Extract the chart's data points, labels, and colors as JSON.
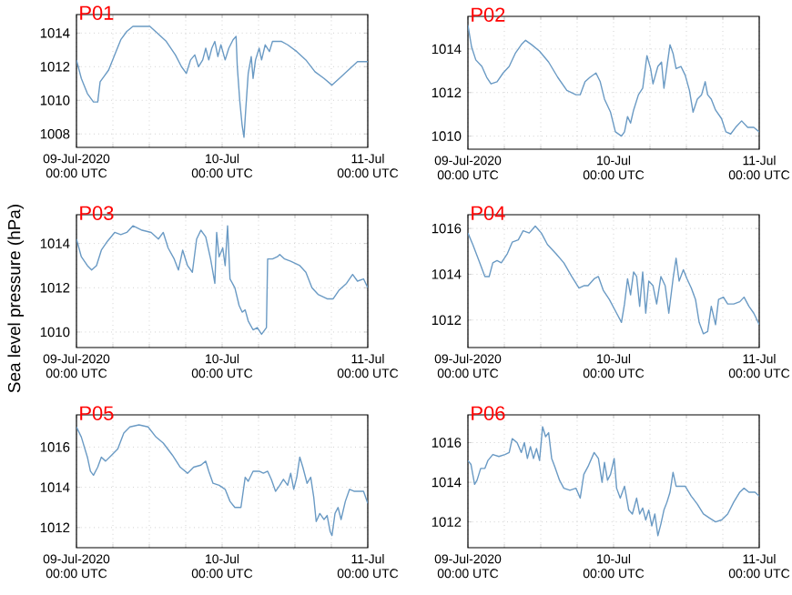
{
  "chart_data": [
    {
      "type": "line",
      "title": "P01",
      "color": "#6a9ac4",
      "grid": true,
      "xlim": [
        "2020-07-09T00:00",
        "2020-07-11T00:00"
      ],
      "ylim": [
        1007.2,
        1015.1
      ],
      "yticks": [
        1008,
        1010,
        1012,
        1014
      ],
      "xticks": [
        {
          "value": "2020-07-09T00:00",
          "label": "09-Jul-2020\n00:00 UTC"
        },
        {
          "value": "2020-07-09T06:00",
          "label": null
        },
        {
          "value": "2020-07-09T12:00",
          "label": null
        },
        {
          "value": "2020-07-09T18:00",
          "label": null
        },
        {
          "value": "2020-07-10T00:00",
          "label": "10-Jul\n00:00 UTC"
        },
        {
          "value": "2020-07-10T06:00",
          "label": null
        },
        {
          "value": "2020-07-10T12:00",
          "label": null
        },
        {
          "value": "2020-07-10T18:00",
          "label": null
        },
        {
          "value": "2020-07-11T00:00",
          "label": "11-Jul\n00:00 UTC"
        }
      ],
      "x": [
        "2020-07-09T00:00",
        "2020-07-09T00:48",
        "2020-07-09T01:48",
        "2020-07-09T02:48",
        "2020-07-09T03:30",
        "2020-07-09T03:54",
        "2020-07-09T04:30",
        "2020-07-09T05:18",
        "2020-07-09T06:18",
        "2020-07-09T07:18",
        "2020-07-09T08:18",
        "2020-07-09T09:18",
        "2020-07-09T10:48",
        "2020-07-09T12:06",
        "2020-07-09T13:18",
        "2020-07-09T14:48",
        "2020-07-09T16:18",
        "2020-07-09T17:18",
        "2020-07-09T18:06",
        "2020-07-09T18:48",
        "2020-07-09T19:30",
        "2020-07-09T20:06",
        "2020-07-09T20:48",
        "2020-07-09T21:18",
        "2020-07-09T21:48",
        "2020-07-09T22:18",
        "2020-07-09T22:48",
        "2020-07-09T23:18",
        "2020-07-09T23:48",
        "2020-07-10T00:30",
        "2020-07-10T01:06",
        "2020-07-10T01:48",
        "2020-07-10T02:18",
        "2020-07-10T02:30",
        "2020-07-10T02:54",
        "2020-07-10T03:18",
        "2020-07-10T03:36",
        "2020-07-10T03:54",
        "2020-07-10T04:18",
        "2020-07-10T04:48",
        "2020-07-10T05:06",
        "2020-07-10T05:30",
        "2020-07-10T06:06",
        "2020-07-10T06:30",
        "2020-07-10T07:06",
        "2020-07-10T07:48",
        "2020-07-10T08:18",
        "2020-07-10T09:06",
        "2020-07-10T09:48",
        "2020-07-10T10:48",
        "2020-07-10T12:18",
        "2020-07-10T13:48",
        "2020-07-10T15:18",
        "2020-07-10T16:48",
        "2020-07-10T18:06",
        "2020-07-10T19:18",
        "2020-07-10T20:48",
        "2020-07-10T22:18",
        "2020-07-11T00:00"
      ],
      "values": [
        1012.4,
        1011.3,
        1010.4,
        1009.9,
        1009.9,
        1011.1,
        1011.4,
        1011.8,
        1012.7,
        1013.6,
        1014.1,
        1014.4,
        1014.4,
        1014.4,
        1014.0,
        1013.5,
        1012.7,
        1012.0,
        1011.6,
        1012.4,
        1012.7,
        1012.0,
        1012.4,
        1013.1,
        1012.4,
        1013.1,
        1013.5,
        1012.6,
        1013.3,
        1012.4,
        1013.1,
        1013.6,
        1013.8,
        1012.0,
        1010.0,
        1008.5,
        1007.8,
        1009.5,
        1011.6,
        1012.6,
        1011.3,
        1012.4,
        1013.1,
        1012.4,
        1013.3,
        1012.9,
        1013.5,
        1013.5,
        1013.5,
        1013.3,
        1012.9,
        1012.4,
        1011.7,
        1011.3,
        1010.9,
        1011.3,
        1011.8,
        1012.3,
        1012.3
      ]
    },
    {
      "type": "line",
      "title": "P02",
      "color": "#6a9ac4",
      "grid": true,
      "xlim": [
        "2020-07-09T00:00",
        "2020-07-11T00:00"
      ],
      "ylim": [
        1009.4,
        1015.5
      ],
      "yticks": [
        1010,
        1012,
        1014
      ],
      "xticks": [
        {
          "value": "2020-07-09T00:00",
          "label": "09-Jul-2020\n00:00 UTC"
        },
        {
          "value": "2020-07-09T06:00",
          "label": null
        },
        {
          "value": "2020-07-09T12:00",
          "label": null
        },
        {
          "value": "2020-07-09T18:00",
          "label": null
        },
        {
          "value": "2020-07-10T00:00",
          "label": "10-Jul\n00:00 UTC"
        },
        {
          "value": "2020-07-10T06:00",
          "label": null
        },
        {
          "value": "2020-07-10T12:00",
          "label": null
        },
        {
          "value": "2020-07-10T18:00",
          "label": null
        },
        {
          "value": "2020-07-11T00:00",
          "label": "11-Jul\n00:00 UTC"
        }
      ],
      "x": [
        "2020-07-09T00:00",
        "2020-07-09T00:36",
        "2020-07-09T01:18",
        "2020-07-09T02:18",
        "2020-07-09T03:06",
        "2020-07-09T03:48",
        "2020-07-09T04:48",
        "2020-07-09T05:48",
        "2020-07-09T06:48",
        "2020-07-09T07:48",
        "2020-07-09T08:48",
        "2020-07-09T09:30",
        "2020-07-09T10:30",
        "2020-07-09T11:48",
        "2020-07-09T13:18",
        "2020-07-09T14:48",
        "2020-07-09T16:18",
        "2020-07-09T17:48",
        "2020-07-09T18:30",
        "2020-07-09T19:18",
        "2020-07-09T20:06",
        "2020-07-09T21:06",
        "2020-07-09T21:48",
        "2020-07-09T22:30",
        "2020-07-09T23:30",
        "2020-07-10T00:18",
        "2020-07-10T01:18",
        "2020-07-10T01:48",
        "2020-07-10T02:18",
        "2020-07-10T02:48",
        "2020-07-10T03:18",
        "2020-07-10T04:06",
        "2020-07-10T04:48",
        "2020-07-10T05:30",
        "2020-07-10T06:06",
        "2020-07-10T06:30",
        "2020-07-10T07:18",
        "2020-07-10T07:54",
        "2020-07-10T08:18",
        "2020-07-10T08:48",
        "2020-07-10T09:18",
        "2020-07-10T09:48",
        "2020-07-10T10:18",
        "2020-07-10T11:06",
        "2020-07-10T11:48",
        "2020-07-10T12:30",
        "2020-07-10T13:06",
        "2020-07-10T13:48",
        "2020-07-10T14:30",
        "2020-07-10T15:06",
        "2020-07-10T15:30",
        "2020-07-10T16:06",
        "2020-07-10T16:48",
        "2020-07-10T17:48",
        "2020-07-10T18:30",
        "2020-07-10T19:18",
        "2020-07-10T20:06",
        "2020-07-10T21:06",
        "2020-07-10T22:06",
        "2020-07-10T23:06",
        "2020-07-11T00:00"
      ],
      "values": [
        1015.1,
        1014.1,
        1013.5,
        1013.2,
        1012.7,
        1012.4,
        1012.5,
        1012.9,
        1013.2,
        1013.8,
        1014.2,
        1014.4,
        1014.2,
        1013.9,
        1013.4,
        1012.7,
        1012.1,
        1011.9,
        1011.9,
        1012.5,
        1012.7,
        1012.9,
        1012.5,
        1011.7,
        1011.1,
        1010.2,
        1010.0,
        1010.2,
        1010.9,
        1010.6,
        1011.2,
        1011.9,
        1012.2,
        1013.7,
        1013.1,
        1012.4,
        1013.2,
        1013.4,
        1012.2,
        1013.2,
        1014.2,
        1013.8,
        1013.1,
        1013.2,
        1012.8,
        1012.1,
        1011.1,
        1011.7,
        1011.9,
        1012.5,
        1011.9,
        1011.7,
        1011.2,
        1010.8,
        1010.2,
        1010.1,
        1010.4,
        1010.7,
        1010.4,
        1010.4,
        1010.2
      ]
    },
    {
      "type": "line",
      "title": "P03",
      "ylabel": "Sea level pressure (hPa)",
      "color": "#6a9ac4",
      "grid": true,
      "xlim": [
        "2020-07-09T00:00",
        "2020-07-11T00:00"
      ],
      "ylim": [
        1009.3,
        1015.3
      ],
      "yticks": [
        1010,
        1012,
        1014
      ],
      "xticks": [
        {
          "value": "2020-07-09T00:00",
          "label": "09-Jul-2020\n00:00 UTC"
        },
        {
          "value": "2020-07-09T06:00",
          "label": null
        },
        {
          "value": "2020-07-09T12:00",
          "label": null
        },
        {
          "value": "2020-07-09T18:00",
          "label": null
        },
        {
          "value": "2020-07-10T00:00",
          "label": "10-Jul\n00:00 UTC"
        },
        {
          "value": "2020-07-10T06:00",
          "label": null
        },
        {
          "value": "2020-07-10T12:00",
          "label": null
        },
        {
          "value": "2020-07-10T18:00",
          "label": null
        },
        {
          "value": "2020-07-11T00:00",
          "label": "11-Jul\n00:00 UTC"
        }
      ],
      "x": [
        "2020-07-09T00:00",
        "2020-07-09T00:48",
        "2020-07-09T01:48",
        "2020-07-09T02:30",
        "2020-07-09T03:18",
        "2020-07-09T04:06",
        "2020-07-09T05:06",
        "2020-07-09T06:18",
        "2020-07-09T07:18",
        "2020-07-09T08:18",
        "2020-07-09T09:18",
        "2020-07-09T10:48",
        "2020-07-09T12:18",
        "2020-07-09T13:30",
        "2020-07-09T14:18",
        "2020-07-09T15:06",
        "2020-07-09T16:06",
        "2020-07-09T16:48",
        "2020-07-09T17:30",
        "2020-07-09T18:18",
        "2020-07-09T19:06",
        "2020-07-09T19:48",
        "2020-07-09T20:30",
        "2020-07-09T21:18",
        "2020-07-09T22:06",
        "2020-07-09T22:48",
        "2020-07-09T23:06",
        "2020-07-09T23:30",
        "2020-07-10T00:06",
        "2020-07-10T00:30",
        "2020-07-10T00:54",
        "2020-07-10T01:18",
        "2020-07-10T02:06",
        "2020-07-10T02:48",
        "2020-07-10T03:18",
        "2020-07-10T03:48",
        "2020-07-10T04:18",
        "2020-07-10T05:06",
        "2020-07-10T05:48",
        "2020-07-10T06:30",
        "2020-07-10T07:18",
        "2020-07-10T07:30",
        "2020-07-10T08:18",
        "2020-07-10T09:06",
        "2020-07-10T09:30",
        "2020-07-10T10:18",
        "2020-07-10T11:18",
        "2020-07-10T12:48",
        "2020-07-10T13:48",
        "2020-07-10T14:48",
        "2020-07-10T15:48",
        "2020-07-10T17:18",
        "2020-07-10T18:18",
        "2020-07-10T19:18",
        "2020-07-10T20:30",
        "2020-07-10T21:30",
        "2020-07-10T22:18",
        "2020-07-10T23:18",
        "2020-07-11T00:00"
      ],
      "values": [
        1014.2,
        1013.4,
        1013.0,
        1012.8,
        1013.0,
        1013.7,
        1014.1,
        1014.5,
        1014.4,
        1014.5,
        1014.8,
        1014.6,
        1014.5,
        1014.2,
        1014.5,
        1013.8,
        1013.3,
        1012.8,
        1013.7,
        1013.0,
        1012.7,
        1014.2,
        1014.6,
        1014.3,
        1013.3,
        1012.2,
        1014.5,
        1013.4,
        1013.8,
        1013.0,
        1014.8,
        1012.4,
        1012.0,
        1011.2,
        1010.9,
        1011.0,
        1010.5,
        1010.1,
        1010.2,
        1009.9,
        1010.2,
        1013.3,
        1013.3,
        1013.4,
        1013.5,
        1013.3,
        1013.2,
        1013.0,
        1012.7,
        1012.0,
        1011.7,
        1011.5,
        1011.5,
        1011.9,
        1012.2,
        1012.6,
        1012.3,
        1012.4,
        1012.0
      ]
    },
    {
      "type": "line",
      "title": "P04",
      "color": "#6a9ac4",
      "grid": true,
      "xlim": [
        "2020-07-09T00:00",
        "2020-07-11T00:00"
      ],
      "ylim": [
        1010.8,
        1016.6
      ],
      "yticks": [
        1012,
        1014,
        1016
      ],
      "xticks": [
        {
          "value": "2020-07-09T00:00",
          "label": "09-Jul-2020\n00:00 UTC"
        },
        {
          "value": "2020-07-09T06:00",
          "label": null
        },
        {
          "value": "2020-07-09T12:00",
          "label": null
        },
        {
          "value": "2020-07-09T18:00",
          "label": null
        },
        {
          "value": "2020-07-10T00:00",
          "label": "10-Jul\n00:00 UTC"
        },
        {
          "value": "2020-07-10T06:00",
          "label": null
        },
        {
          "value": "2020-07-10T12:00",
          "label": null
        },
        {
          "value": "2020-07-10T18:00",
          "label": null
        },
        {
          "value": "2020-07-11T00:00",
          "label": "11-Jul\n00:00 UTC"
        }
      ],
      "x": [
        "2020-07-09T00:00",
        "2020-07-09T00:48",
        "2020-07-09T01:48",
        "2020-07-09T02:48",
        "2020-07-09T03:30",
        "2020-07-09T04:06",
        "2020-07-09T04:48",
        "2020-07-09T05:30",
        "2020-07-09T06:30",
        "2020-07-09T07:18",
        "2020-07-09T08:18",
        "2020-07-09T09:06",
        "2020-07-09T10:06",
        "2020-07-09T11:06",
        "2020-07-09T12:06",
        "2020-07-09T13:06",
        "2020-07-09T14:30",
        "2020-07-09T15:48",
        "2020-07-09T17:06",
        "2020-07-09T18:18",
        "2020-07-09T19:06",
        "2020-07-09T19:48",
        "2020-07-09T20:48",
        "2020-07-09T21:30",
        "2020-07-09T22:18",
        "2020-07-09T23:18",
        "2020-07-10T00:30",
        "2020-07-10T01:18",
        "2020-07-10T01:48",
        "2020-07-10T02:18",
        "2020-07-10T02:48",
        "2020-07-10T03:18",
        "2020-07-10T03:48",
        "2020-07-10T04:18",
        "2020-07-10T04:48",
        "2020-07-10T05:18",
        "2020-07-10T05:48",
        "2020-07-10T06:30",
        "2020-07-10T07:06",
        "2020-07-10T07:48",
        "2020-07-10T08:30",
        "2020-07-10T09:06",
        "2020-07-10T09:48",
        "2020-07-10T10:18",
        "2020-07-10T10:48",
        "2020-07-10T11:30",
        "2020-07-10T12:06",
        "2020-07-10T12:48",
        "2020-07-10T13:30",
        "2020-07-10T14:06",
        "2020-07-10T14:48",
        "2020-07-10T15:30",
        "2020-07-10T16:06",
        "2020-07-10T16:48",
        "2020-07-10T17:18",
        "2020-07-10T18:06",
        "2020-07-10T18:48",
        "2020-07-10T19:48",
        "2020-07-10T20:48",
        "2020-07-10T21:30",
        "2020-07-10T22:18",
        "2020-07-10T23:06",
        "2020-07-11T00:00"
      ],
      "values": [
        1015.8,
        1015.3,
        1014.6,
        1013.9,
        1013.9,
        1014.5,
        1014.6,
        1014.5,
        1014.9,
        1015.4,
        1015.5,
        1015.9,
        1015.8,
        1016.1,
        1015.8,
        1015.3,
        1014.9,
        1014.5,
        1013.9,
        1013.4,
        1013.5,
        1013.5,
        1013.8,
        1013.9,
        1013.3,
        1012.9,
        1012.3,
        1011.9,
        1012.7,
        1013.8,
        1013.1,
        1014.1,
        1013.9,
        1012.6,
        1014.1,
        1012.3,
        1013.7,
        1013.5,
        1012.7,
        1013.9,
        1013.5,
        1012.3,
        1013.8,
        1014.7,
        1013.7,
        1014.2,
        1013.8,
        1013.4,
        1012.9,
        1011.9,
        1011.4,
        1011.5,
        1012.6,
        1011.8,
        1012.9,
        1013.0,
        1012.7,
        1012.7,
        1012.8,
        1013.0,
        1012.6,
        1012.3,
        1011.8
      ]
    },
    {
      "type": "line",
      "title": "P05",
      "color": "#6a9ac4",
      "grid": true,
      "xlim": [
        "2020-07-09T00:00",
        "2020-07-11T00:00"
      ],
      "ylim": [
        1011.0,
        1017.6
      ],
      "yticks": [
        1012,
        1014,
        1016
      ],
      "xticks": [
        {
          "value": "2020-07-09T00:00",
          "label": "09-Jul-2020\n00:00 UTC"
        },
        {
          "value": "2020-07-09T06:00",
          "label": null
        },
        {
          "value": "2020-07-09T12:00",
          "label": null
        },
        {
          "value": "2020-07-09T18:00",
          "label": null
        },
        {
          "value": "2020-07-10T00:00",
          "label": "10-Jul\n00:00 UTC"
        },
        {
          "value": "2020-07-10T06:00",
          "label": null
        },
        {
          "value": "2020-07-10T12:00",
          "label": null
        },
        {
          "value": "2020-07-10T18:00",
          "label": null
        },
        {
          "value": "2020-07-11T00:00",
          "label": "11-Jul\n00:00 UTC"
        }
      ],
      "x": [
        "2020-07-09T00:00",
        "2020-07-09T00:48",
        "2020-07-09T01:48",
        "2020-07-09T02:18",
        "2020-07-09T02:48",
        "2020-07-09T03:30",
        "2020-07-09T04:06",
        "2020-07-09T04:48",
        "2020-07-09T05:48",
        "2020-07-09T06:48",
        "2020-07-09T07:48",
        "2020-07-09T08:48",
        "2020-07-09T10:18",
        "2020-07-09T11:48",
        "2020-07-09T13:06",
        "2020-07-09T14:18",
        "2020-07-09T15:48",
        "2020-07-09T17:06",
        "2020-07-09T18:18",
        "2020-07-09T19:18",
        "2020-07-09T20:30",
        "2020-07-09T21:18",
        "2020-07-09T21:48",
        "2020-07-09T22:30",
        "2020-07-09T23:30",
        "2020-07-10T00:30",
        "2020-07-10T01:18",
        "2020-07-10T02:06",
        "2020-07-10T03:06",
        "2020-07-10T03:48",
        "2020-07-10T04:18",
        "2020-07-10T05:06",
        "2020-07-10T06:06",
        "2020-07-10T06:48",
        "2020-07-10T07:30",
        "2020-07-10T08:06",
        "2020-07-10T08:48",
        "2020-07-10T09:30",
        "2020-07-10T10:06",
        "2020-07-10T10:48",
        "2020-07-10T11:18",
        "2020-07-10T11:48",
        "2020-07-10T12:18",
        "2020-07-10T12:48",
        "2020-07-10T13:18",
        "2020-07-10T14:00",
        "2020-07-10T14:36",
        "2020-07-10T15:06",
        "2020-07-10T15:30",
        "2020-07-10T16:06",
        "2020-07-10T16:48",
        "2020-07-10T17:18",
        "2020-07-10T17:48",
        "2020-07-10T18:06",
        "2020-07-10T18:36",
        "2020-07-10T19:06",
        "2020-07-10T19:36",
        "2020-07-10T20:18",
        "2020-07-10T21:00",
        "2020-07-10T21:48",
        "2020-07-10T22:48",
        "2020-07-10T23:18",
        "2020-07-11T00:00"
      ],
      "values": [
        1017.0,
        1016.5,
        1015.5,
        1014.8,
        1014.6,
        1015.0,
        1015.5,
        1015.3,
        1015.6,
        1015.9,
        1016.7,
        1017.0,
        1017.1,
        1017.0,
        1016.5,
        1016.2,
        1015.6,
        1015.0,
        1014.7,
        1015.0,
        1015.1,
        1015.3,
        1014.8,
        1014.2,
        1014.1,
        1013.9,
        1013.3,
        1013.0,
        1013.0,
        1014.5,
        1014.3,
        1014.8,
        1014.8,
        1014.7,
        1014.8,
        1014.4,
        1013.8,
        1014.1,
        1014.4,
        1014.1,
        1014.7,
        1013.9,
        1014.5,
        1015.5,
        1015.0,
        1014.2,
        1014.5,
        1013.5,
        1012.3,
        1012.7,
        1012.4,
        1012.6,
        1011.8,
        1011.6,
        1012.7,
        1013.0,
        1012.4,
        1013.3,
        1013.9,
        1013.8,
        1013.8,
        1013.8,
        1013.2
      ]
    },
    {
      "type": "line",
      "title": "P06",
      "color": "#6a9ac4",
      "grid": true,
      "xlim": [
        "2020-07-09T00:00",
        "2020-07-11T00:00"
      ],
      "ylim": [
        1010.7,
        1017.4
      ],
      "yticks": [
        1012,
        1014,
        1016
      ],
      "xticks": [
        {
          "value": "2020-07-09T00:00",
          "label": "09-Jul-2020\n00:00 UTC"
        },
        {
          "value": "2020-07-09T06:00",
          "label": null
        },
        {
          "value": "2020-07-09T12:00",
          "label": null
        },
        {
          "value": "2020-07-09T18:00",
          "label": null
        },
        {
          "value": "2020-07-10T00:00",
          "label": "10-Jul\n00:00 UTC"
        },
        {
          "value": "2020-07-10T06:00",
          "label": null
        },
        {
          "value": "2020-07-10T12:00",
          "label": null
        },
        {
          "value": "2020-07-10T18:00",
          "label": null
        },
        {
          "value": "2020-07-11T00:00",
          "label": "11-Jul\n00:00 UTC"
        }
      ],
      "x": [
        "2020-07-09T00:00",
        "2020-07-09T00:30",
        "2020-07-09T01:06",
        "2020-07-09T01:30",
        "2020-07-09T02:06",
        "2020-07-09T02:48",
        "2020-07-09T03:18",
        "2020-07-09T04:06",
        "2020-07-09T05:06",
        "2020-07-09T06:06",
        "2020-07-09T06:48",
        "2020-07-09T07:18",
        "2020-07-09T08:06",
        "2020-07-09T08:48",
        "2020-07-09T09:18",
        "2020-07-09T09:48",
        "2020-07-09T10:18",
        "2020-07-09T10:48",
        "2020-07-09T11:18",
        "2020-07-09T11:48",
        "2020-07-09T12:18",
        "2020-07-09T12:48",
        "2020-07-09T13:18",
        "2020-07-09T13:48",
        "2020-07-09T14:18",
        "2020-07-09T15:06",
        "2020-07-09T15:48",
        "2020-07-09T16:48",
        "2020-07-09T17:48",
        "2020-07-09T18:30",
        "2020-07-09T19:06",
        "2020-07-09T19:48",
        "2020-07-09T20:48",
        "2020-07-09T21:30",
        "2020-07-09T22:06",
        "2020-07-09T22:30",
        "2020-07-09T23:00",
        "2020-07-09T23:30",
        "2020-07-10T00:06",
        "2020-07-10T00:30",
        "2020-07-10T01:06",
        "2020-07-10T01:48",
        "2020-07-10T02:30",
        "2020-07-10T03:06",
        "2020-07-10T03:48",
        "2020-07-10T04:18",
        "2020-07-10T04:48",
        "2020-07-10T05:18",
        "2020-07-10T05:48",
        "2020-07-10T06:18",
        "2020-07-10T06:48",
        "2020-07-10T07:18",
        "2020-07-10T07:48",
        "2020-07-10T08:18",
        "2020-07-10T08:48",
        "2020-07-10T09:18",
        "2020-07-10T09:48",
        "2020-07-10T10:18",
        "2020-07-10T11:06",
        "2020-07-10T11:48",
        "2020-07-10T12:48",
        "2020-07-10T13:48",
        "2020-07-10T14:48",
        "2020-07-10T15:48",
        "2020-07-10T16:48",
        "2020-07-10T17:48",
        "2020-07-10T18:48",
        "2020-07-10T19:48",
        "2020-07-10T20:48",
        "2020-07-10T21:30",
        "2020-07-10T22:18",
        "2020-07-10T23:18",
        "2020-07-11T00:00"
      ],
      "values": [
        1015.1,
        1014.9,
        1013.9,
        1014.1,
        1014.7,
        1014.7,
        1015.1,
        1015.4,
        1015.3,
        1015.4,
        1015.5,
        1016.2,
        1016.0,
        1015.5,
        1016.0,
        1015.2,
        1015.8,
        1015.2,
        1015.7,
        1015.1,
        1016.8,
        1016.3,
        1016.5,
        1015.2,
        1014.8,
        1014.1,
        1013.7,
        1013.6,
        1013.7,
        1013.2,
        1014.4,
        1014.8,
        1015.5,
        1015.2,
        1014.0,
        1015.0,
        1014.1,
        1014.4,
        1015.2,
        1013.7,
        1013.2,
        1013.8,
        1012.6,
        1012.4,
        1013.2,
        1012.4,
        1012.7,
        1012.1,
        1012.6,
        1011.8,
        1012.4,
        1011.3,
        1011.9,
        1012.6,
        1013.0,
        1013.5,
        1014.5,
        1013.8,
        1013.8,
        1013.8,
        1013.3,
        1012.9,
        1012.4,
        1012.2,
        1012.0,
        1012.1,
        1012.4,
        1013.0,
        1013.5,
        1013.7,
        1013.5,
        1013.5,
        1013.3
      ]
    }
  ]
}
